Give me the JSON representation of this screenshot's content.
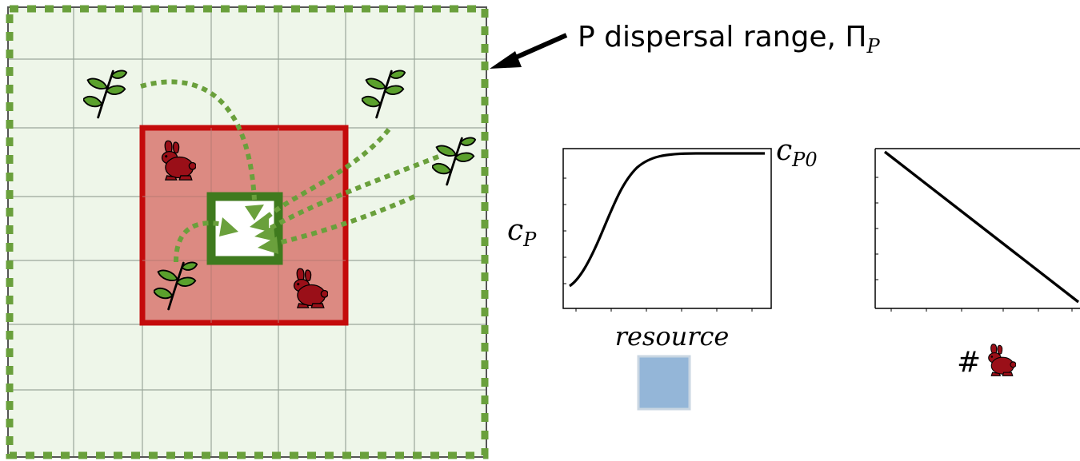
{
  "dispersal_label": {
    "text": "P dispersal range, Π",
    "subscript": "P"
  },
  "cp_label": {
    "main": "c",
    "sub": "P"
  },
  "cp0_label": {
    "main": "c",
    "sub": "P0"
  },
  "resource_label": "resource",
  "count_label": "#",
  "colors": {
    "grid_fill": "#eef6e9",
    "grid_line": "#9aa79a",
    "outer_border": "#6aa03c",
    "range_border": "#c40b0b",
    "range_fill": "#dc8a82",
    "center_border": "#3f7a1e",
    "arrow": "#6aa03c",
    "plant": "#5aa02c",
    "rabbit": "#9a0f18",
    "resource_square": "#94b6d8"
  },
  "icons": {
    "plant": "plant-sprig-icon",
    "rabbit": "rabbit-icon",
    "arrow": "black-arrow-icon"
  },
  "chart_data": [
    {
      "type": "line",
      "shape": "sigmoid",
      "xlabel": "resource",
      "ylabel": "c_P",
      "annotation": "c_P0"
    },
    {
      "type": "line",
      "shape": "linear-decreasing",
      "xlabel": "# rabbit",
      "ylabel": ""
    }
  ]
}
